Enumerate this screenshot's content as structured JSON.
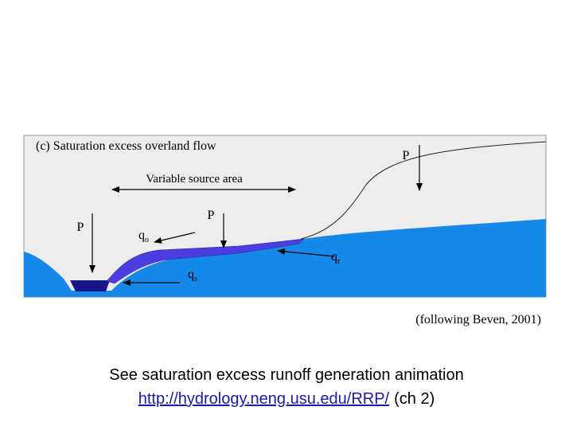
{
  "diagram": {
    "title": "(c) Saturation excess overland flow",
    "source_area": "Variable source area",
    "labels": [
      {
        "id": "p-left",
        "text": "P"
      },
      {
        "id": "p-middle",
        "text": "P"
      },
      {
        "id": "p-right",
        "text": "P"
      },
      {
        "id": "q-overland",
        "text": "q",
        "sub": "o"
      },
      {
        "id": "q-return",
        "text": "q",
        "sub": "r"
      },
      {
        "id": "q-subsurface",
        "text": "q",
        "sub": "s"
      }
    ]
  },
  "citation": "(following Beven, 2001)",
  "caption": {
    "line1": "See saturation excess runoff generation animation",
    "link": "http://hydrology.neng.usu.edu/RRP/",
    "link_suffix": "(ch 2)"
  }
}
